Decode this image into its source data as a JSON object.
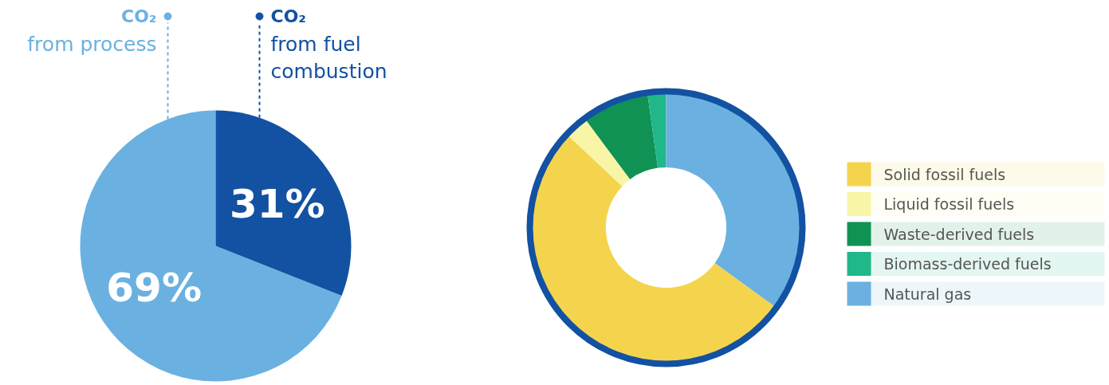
{
  "chart_data": [
    {
      "type": "pie",
      "categories": [
        "CO₂ from process",
        "CO₂ from fuel combustion"
      ],
      "values": [
        69,
        31
      ],
      "colors": [
        "#6ab1e1",
        "#1351a2"
      ],
      "value_labels": [
        "69%",
        "31%"
      ]
    },
    {
      "type": "donut",
      "categories": [
        "Solid fossil fuels",
        "Liquid fossil fuels",
        "Waste-derived fuels",
        "Biomass-derived fuels",
        "Natural gas"
      ],
      "values": [
        52,
        2.8,
        8,
        2.2,
        35
      ],
      "colors": [
        "#f4d44d",
        "#f8f5a6",
        "#109255",
        "#20b789",
        "#6ab1e1"
      ],
      "legend": "right"
    }
  ]
}
